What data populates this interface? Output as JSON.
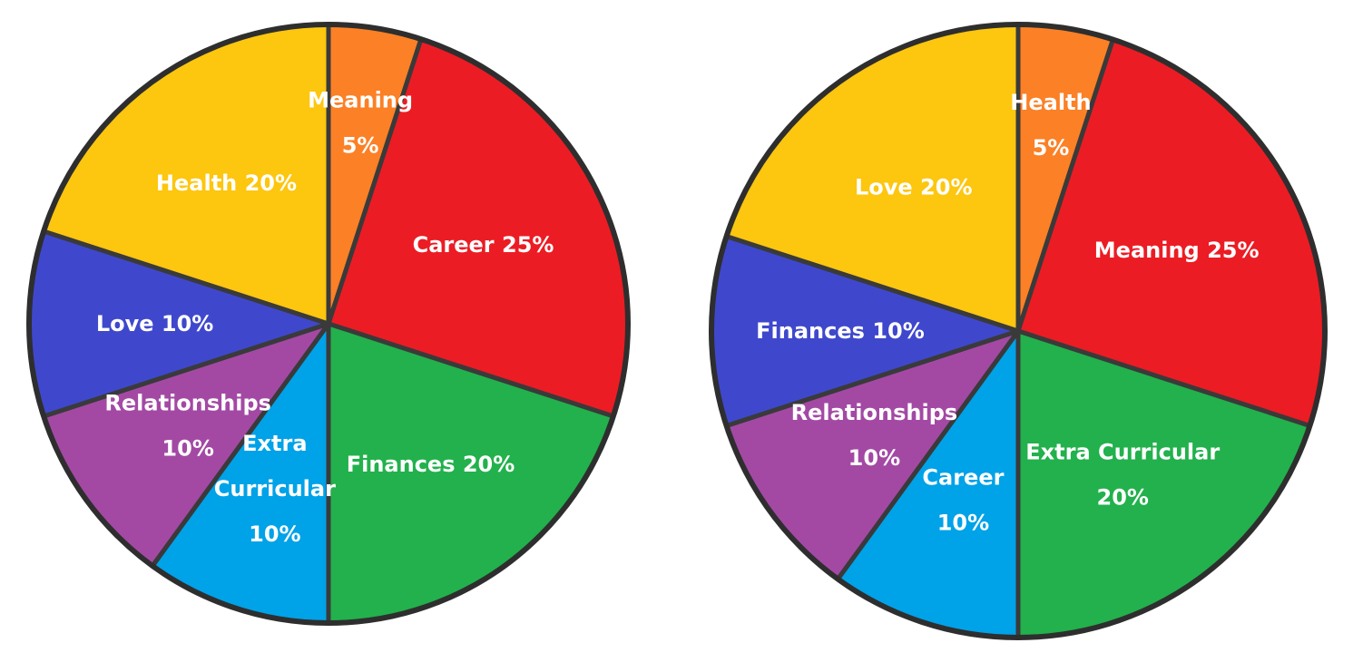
{
  "chart_data": [
    {
      "type": "pie",
      "start": "top",
      "direction": "clockwise",
      "slices": [
        {
          "name": "Meaning",
          "value": 5,
          "color": "#FB8026",
          "label_lines": [
            "Meaning",
            "5%"
          ]
        },
        {
          "name": "Career",
          "value": 25,
          "color": "#EC1C24",
          "label_lines": [
            "Career 25%"
          ]
        },
        {
          "name": "Finances",
          "value": 20,
          "color": "#22B14C",
          "label_lines": [
            "Finances 20%"
          ]
        },
        {
          "name": "Extra Curricular",
          "value": 10,
          "color": "#00A2E8",
          "label_lines": [
            "Extra",
            "Curricular",
            "10%"
          ]
        },
        {
          "name": "Relationships",
          "value": 10,
          "color": "#A349A4",
          "label_lines": [
            "Relationships",
            "10%"
          ]
        },
        {
          "name": "Love",
          "value": 10,
          "color": "#3F48CC",
          "label_lines": [
            "Love 10%"
          ]
        },
        {
          "name": "Health",
          "value": 20,
          "color": "#FDC60F",
          "label_lines": [
            "Health 20%"
          ]
        }
      ]
    },
    {
      "type": "pie",
      "start": "top",
      "direction": "clockwise",
      "slices": [
        {
          "name": "Health",
          "value": 5,
          "color": "#FB8026",
          "label_lines": [
            "Health",
            "5%"
          ]
        },
        {
          "name": "Meaning",
          "value": 25,
          "color": "#EC1C24",
          "label_lines": [
            "Meaning 25%"
          ]
        },
        {
          "name": "Extra Curricular",
          "value": 20,
          "color": "#22B14C",
          "label_lines": [
            "Extra Curricular",
            "20%"
          ]
        },
        {
          "name": "Career",
          "value": 10,
          "color": "#00A2E8",
          "label_lines": [
            "Career",
            "10%"
          ]
        },
        {
          "name": "Relationships",
          "value": 10,
          "color": "#A349A4",
          "label_lines": [
            "Relationships",
            "10%"
          ]
        },
        {
          "name": "Finances",
          "value": 10,
          "color": "#3F48CC",
          "label_lines": [
            "Finances 10%"
          ]
        },
        {
          "name": "Love",
          "value": 20,
          "color": "#FDC60F",
          "label_lines": [
            "Love 20%"
          ]
        }
      ]
    }
  ]
}
